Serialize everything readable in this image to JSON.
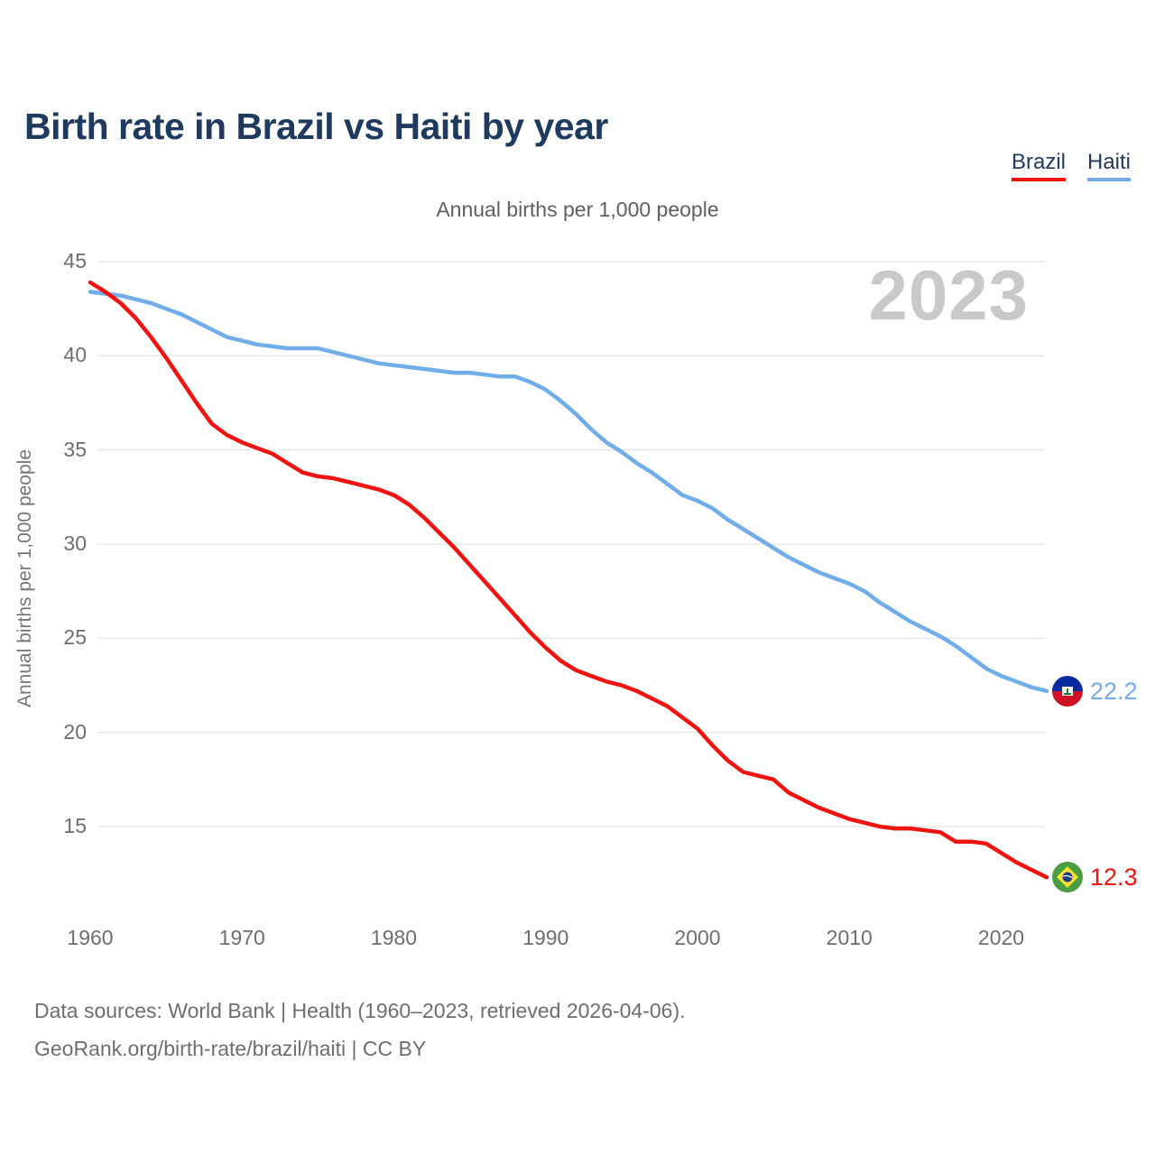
{
  "header": {
    "title": "Birth rate in Brazil vs Haiti by year"
  },
  "legend": {
    "items": [
      {
        "label": "Brazil",
        "color": "#f01310"
      },
      {
        "label": "Haiti",
        "color": "#71ade8"
      }
    ]
  },
  "subtitle": "Annual births per 1,000 people",
  "watermark": "2023",
  "y_axis_label": "Annual births per 1,000 people",
  "end_labels": {
    "haiti": {
      "value": "22.2",
      "color": "#71ade8",
      "flag": "haiti-flag-icon"
    },
    "brazil": {
      "value": "12.3",
      "color": "#f01310",
      "flag": "brazil-flag-icon"
    }
  },
  "footer": {
    "line1": "Data sources: World Bank | Health (1960–2023, retrieved 2026-04-06).",
    "line2": "GeoRank.org/birth-rate/brazil/haiti | CC BY"
  },
  "chart_data": {
    "type": "line",
    "title": "Birth rate in Brazil vs Haiti by year",
    "subtitle": "Annual births per 1,000 people",
    "ylabel": "Annual births per 1,000 people",
    "xlabel": "",
    "grid": "horizontal",
    "legend_position": "top-right",
    "xlim": [
      1960,
      2023
    ],
    "ylim": [
      15,
      45
    ],
    "xticks": [
      1960,
      1970,
      1980,
      1990,
      2000,
      2010,
      2020
    ],
    "yticks": [
      45,
      40,
      35,
      30,
      25,
      20,
      15
    ],
    "years": [
      1960,
      1961,
      1962,
      1963,
      1964,
      1965,
      1966,
      1967,
      1968,
      1969,
      1970,
      1971,
      1972,
      1973,
      1974,
      1975,
      1976,
      1977,
      1978,
      1979,
      1980,
      1981,
      1982,
      1983,
      1984,
      1985,
      1986,
      1987,
      1988,
      1989,
      1990,
      1991,
      1992,
      1993,
      1994,
      1995,
      1996,
      1997,
      1998,
      1999,
      2000,
      2001,
      2002,
      2003,
      2004,
      2005,
      2006,
      2007,
      2008,
      2009,
      2010,
      2011,
      2012,
      2013,
      2014,
      2015,
      2016,
      2017,
      2018,
      2019,
      2020,
      2021,
      2022,
      2023
    ],
    "series": [
      {
        "name": "Brazil",
        "color": "#f01310",
        "end_value": 12.3,
        "values": [
          43.9,
          43.4,
          42.8,
          42.0,
          41.0,
          39.9,
          38.7,
          37.5,
          36.4,
          35.8,
          35.4,
          35.1,
          34.8,
          34.3,
          33.8,
          33.6,
          33.5,
          33.3,
          33.1,
          32.9,
          32.6,
          32.1,
          31.4,
          30.6,
          29.8,
          28.9,
          28.0,
          27.1,
          26.2,
          25.3,
          24.5,
          23.8,
          23.3,
          23.0,
          22.7,
          22.5,
          22.2,
          21.8,
          21.4,
          20.8,
          20.2,
          19.3,
          18.5,
          17.9,
          17.7,
          17.5,
          16.8,
          16.4,
          16.0,
          15.7,
          15.4,
          15.2,
          15.0,
          14.9,
          14.9,
          14.8,
          14.7,
          14.2,
          14.2,
          14.1,
          13.6,
          13.1,
          12.7,
          12.3
        ]
      },
      {
        "name": "Haiti",
        "color": "#71ade8",
        "end_value": 22.2,
        "values": [
          43.4,
          43.3,
          43.2,
          43.0,
          42.8,
          42.5,
          42.2,
          41.8,
          41.4,
          41.0,
          40.8,
          40.6,
          40.5,
          40.4,
          40.4,
          40.4,
          40.2,
          40.0,
          39.8,
          39.6,
          39.5,
          39.4,
          39.3,
          39.2,
          39.1,
          39.1,
          39.0,
          38.9,
          38.9,
          38.6,
          38.2,
          37.6,
          36.9,
          36.1,
          35.4,
          34.9,
          34.3,
          33.8,
          33.2,
          32.6,
          32.3,
          31.9,
          31.3,
          30.8,
          30.3,
          29.8,
          29.3,
          28.9,
          28.5,
          28.2,
          27.9,
          27.5,
          26.9,
          26.4,
          25.9,
          25.5,
          25.1,
          24.6,
          24.0,
          23.4,
          23.0,
          22.7,
          22.4,
          22.2
        ]
      }
    ]
  },
  "layout_colors": {
    "gridline": "#e8e8e8",
    "tick_text": "#6e6e6e",
    "haiti_flag": {
      "top": "#0a2ba0",
      "bottom": "#cf1126",
      "panel": "#ffffff"
    },
    "brazil_flag": {
      "field": "#4a9e3f",
      "diamond": "#fede35",
      "globe": "#1b3d8f"
    }
  }
}
